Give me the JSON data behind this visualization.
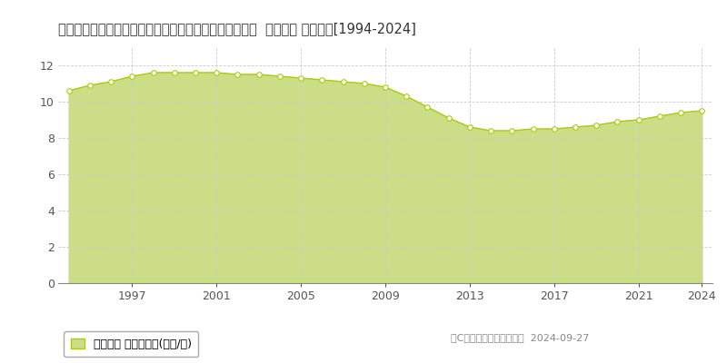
{
  "title": "佐賀県三養基郡上峰町大字坊所字一本谷２５５８番６８  公示地価 地価推移[1994-2024]",
  "years": [
    1994,
    1995,
    1996,
    1997,
    1998,
    1999,
    2000,
    2001,
    2002,
    2003,
    2004,
    2005,
    2006,
    2007,
    2008,
    2009,
    2010,
    2011,
    2012,
    2013,
    2014,
    2015,
    2016,
    2017,
    2018,
    2019,
    2020,
    2021,
    2022,
    2023,
    2024
  ],
  "values": [
    10.6,
    10.9,
    11.1,
    11.4,
    11.6,
    11.6,
    11.6,
    11.6,
    11.5,
    11.5,
    11.4,
    11.3,
    11.2,
    11.1,
    11.0,
    10.8,
    10.3,
    9.7,
    9.1,
    8.6,
    8.4,
    8.4,
    8.5,
    8.5,
    8.6,
    8.7,
    8.9,
    9.0,
    9.2,
    9.4,
    9.5
  ],
  "line_color": "#aacc00",
  "fill_color": "#ccdd88",
  "marker_facecolor": "#ffffff",
  "marker_edgecolor": "#aacc00",
  "background_color": "#ffffff",
  "grid_color": "#cccccc",
  "legend_label": "公示地価 平均坪単価(万円/坪)",
  "copyright_text": "（C）土地価格ドットコム  2024-09-27",
  "ylim": [
    0,
    13
  ],
  "yticks": [
    0,
    2,
    4,
    6,
    8,
    10,
    12
  ],
  "xtick_years": [
    1997,
    2001,
    2005,
    2009,
    2013,
    2017,
    2021,
    2024
  ],
  "title_fontsize": 10.5,
  "tick_fontsize": 9,
  "legend_fontsize": 9,
  "copyright_fontsize": 8
}
